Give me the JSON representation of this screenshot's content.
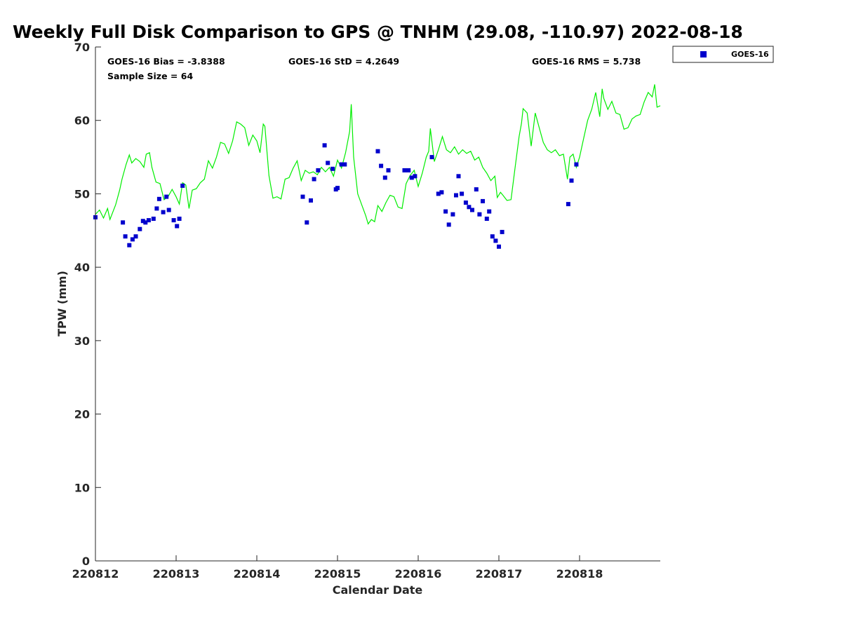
{
  "chart_data": {
    "type": "scatter",
    "title": "Weekly Full Disk Comparison to GPS @ TNHM (29.08, -110.97) 2022-08-18",
    "xlabel": "Calendar Date",
    "ylabel": "TPW (mm)",
    "xlim": [
      0,
      7
    ],
    "ylim": [
      0,
      70
    ],
    "x_ticks": [
      {
        "value": 0,
        "label": "220812"
      },
      {
        "value": 1,
        "label": "220813"
      },
      {
        "value": 2,
        "label": "220814"
      },
      {
        "value": 3,
        "label": "220815"
      },
      {
        "value": 4,
        "label": "220816"
      },
      {
        "value": 5,
        "label": "220817"
      },
      {
        "value": 6,
        "label": "220818"
      }
    ],
    "y_ticks": [
      0,
      10,
      20,
      30,
      40,
      50,
      60,
      70
    ],
    "grid": false,
    "legend": {
      "placement": "outside-top-right",
      "entries": [
        "GOES-16"
      ]
    },
    "stats": {
      "bias": "GOES-16 Bias = -3.8388",
      "std": "GOES-16 StD = 4.2649",
      "rms": "GOES-16 RMS = 5.738",
      "sample": "Sample Size = 64"
    },
    "series": [
      {
        "name": "GOES-16",
        "kind": "scatter",
        "color": "#0000cc",
        "marker": "square",
        "points": [
          [
            0.0,
            46.8
          ],
          [
            0.34,
            46.1
          ],
          [
            0.37,
            44.2
          ],
          [
            0.42,
            43.0
          ],
          [
            0.46,
            43.8
          ],
          [
            0.5,
            44.2
          ],
          [
            0.55,
            45.2
          ],
          [
            0.59,
            46.3
          ],
          [
            0.62,
            46.1
          ],
          [
            0.66,
            46.4
          ],
          [
            0.72,
            46.6
          ],
          [
            0.76,
            48.0
          ],
          [
            0.79,
            49.3
          ],
          [
            0.84,
            47.5
          ],
          [
            0.88,
            49.6
          ],
          [
            0.91,
            47.8
          ],
          [
            0.97,
            46.4
          ],
          [
            1.01,
            45.6
          ],
          [
            1.04,
            46.6
          ],
          [
            1.08,
            51.1
          ],
          [
            2.57,
            49.6
          ],
          [
            2.62,
            46.1
          ],
          [
            2.67,
            49.1
          ],
          [
            2.71,
            52.0
          ],
          [
            2.76,
            53.2
          ],
          [
            2.84,
            56.6
          ],
          [
            2.88,
            54.2
          ],
          [
            2.94,
            53.4
          ],
          [
            2.98,
            50.6
          ],
          [
            3.0,
            50.8
          ],
          [
            3.05,
            54.0
          ],
          [
            3.09,
            54.0
          ],
          [
            3.5,
            55.8
          ],
          [
            3.54,
            53.8
          ],
          [
            3.59,
            52.2
          ],
          [
            3.63,
            53.2
          ],
          [
            3.83,
            53.2
          ],
          [
            3.88,
            53.2
          ],
          [
            3.92,
            52.2
          ],
          [
            3.96,
            52.4
          ],
          [
            4.17,
            55.0
          ],
          [
            4.25,
            50.0
          ],
          [
            4.29,
            50.2
          ],
          [
            4.34,
            47.6
          ],
          [
            4.38,
            45.8
          ],
          [
            4.43,
            47.2
          ],
          [
            4.47,
            49.8
          ],
          [
            4.5,
            52.4
          ],
          [
            4.54,
            50.0
          ],
          [
            4.59,
            48.8
          ],
          [
            4.63,
            48.2
          ],
          [
            4.67,
            47.8
          ],
          [
            4.72,
            50.6
          ],
          [
            4.76,
            47.2
          ],
          [
            4.8,
            49.0
          ],
          [
            4.85,
            46.6
          ],
          [
            4.88,
            47.6
          ],
          [
            4.92,
            44.2
          ],
          [
            4.96,
            43.6
          ],
          [
            5.0,
            42.8
          ],
          [
            5.04,
            44.8
          ],
          [
            5.86,
            48.6
          ],
          [
            5.9,
            51.8
          ],
          [
            5.96,
            54.0
          ]
        ]
      },
      {
        "kind": "line",
        "color": "#00ee00",
        "points": [
          [
            0.0,
            47.2
          ],
          [
            0.05,
            47.8
          ],
          [
            0.1,
            46.7
          ],
          [
            0.15,
            48.0
          ],
          [
            0.18,
            46.5
          ],
          [
            0.25,
            48.5
          ],
          [
            0.3,
            50.5
          ],
          [
            0.33,
            52.0
          ],
          [
            0.38,
            54.0
          ],
          [
            0.42,
            55.3
          ],
          [
            0.45,
            54.2
          ],
          [
            0.5,
            54.8
          ],
          [
            0.55,
            54.4
          ],
          [
            0.6,
            53.6
          ],
          [
            0.63,
            55.4
          ],
          [
            0.67,
            55.6
          ],
          [
            0.7,
            53.6
          ],
          [
            0.75,
            51.6
          ],
          [
            0.8,
            51.4
          ],
          [
            0.85,
            49.2
          ],
          [
            0.9,
            49.6
          ],
          [
            0.95,
            50.6
          ],
          [
            1.0,
            49.6
          ],
          [
            1.04,
            48.6
          ],
          [
            1.08,
            51.5
          ],
          [
            1.12,
            51.2
          ],
          [
            1.16,
            48.0
          ],
          [
            1.2,
            50.5
          ],
          [
            1.25,
            50.7
          ],
          [
            1.3,
            51.5
          ],
          [
            1.35,
            52.0
          ],
          [
            1.4,
            54.5
          ],
          [
            1.45,
            53.5
          ],
          [
            1.5,
            55.0
          ],
          [
            1.55,
            57.0
          ],
          [
            1.6,
            56.8
          ],
          [
            1.65,
            55.5
          ],
          [
            1.7,
            57.2
          ],
          [
            1.75,
            59.8
          ],
          [
            1.8,
            59.5
          ],
          [
            1.85,
            59.0
          ],
          [
            1.9,
            56.6
          ],
          [
            1.95,
            58.0
          ],
          [
            2.0,
            57.2
          ],
          [
            2.04,
            55.6
          ],
          [
            2.08,
            59.5
          ],
          [
            2.1,
            59.2
          ],
          [
            2.15,
            52.5
          ],
          [
            2.2,
            49.4
          ],
          [
            2.25,
            49.6
          ],
          [
            2.3,
            49.3
          ],
          [
            2.35,
            52.0
          ],
          [
            2.4,
            52.2
          ],
          [
            2.45,
            53.5
          ],
          [
            2.5,
            54.5
          ],
          [
            2.55,
            51.8
          ],
          [
            2.6,
            53.2
          ],
          [
            2.65,
            52.8
          ],
          [
            2.7,
            53.0
          ],
          [
            2.75,
            52.6
          ],
          [
            2.8,
            53.6
          ],
          [
            2.85,
            53.0
          ],
          [
            2.9,
            53.6
          ],
          [
            2.95,
            52.4
          ],
          [
            3.0,
            54.6
          ],
          [
            3.05,
            53.5
          ],
          [
            3.1,
            55.6
          ],
          [
            3.15,
            58.5
          ],
          [
            3.17,
            62.2
          ],
          [
            3.2,
            55.0
          ],
          [
            3.25,
            50.0
          ],
          [
            3.3,
            48.5
          ],
          [
            3.35,
            47.0
          ],
          [
            3.38,
            45.9
          ],
          [
            3.42,
            46.5
          ],
          [
            3.46,
            46.2
          ],
          [
            3.5,
            48.4
          ],
          [
            3.55,
            47.6
          ],
          [
            3.6,
            48.8
          ],
          [
            3.65,
            49.8
          ],
          [
            3.7,
            49.6
          ],
          [
            3.75,
            48.2
          ],
          [
            3.8,
            48.0
          ],
          [
            3.85,
            51.4
          ],
          [
            3.9,
            52.5
          ],
          [
            3.95,
            53.2
          ],
          [
            4.0,
            51.0
          ],
          [
            4.05,
            52.8
          ],
          [
            4.1,
            55.0
          ],
          [
            4.13,
            55.8
          ],
          [
            4.15,
            58.9
          ],
          [
            4.2,
            54.4
          ],
          [
            4.25,
            56.0
          ],
          [
            4.3,
            57.8
          ],
          [
            4.35,
            56.0
          ],
          [
            4.4,
            55.6
          ],
          [
            4.45,
            56.4
          ],
          [
            4.5,
            55.4
          ],
          [
            4.55,
            56.0
          ],
          [
            4.6,
            55.5
          ],
          [
            4.65,
            55.8
          ],
          [
            4.7,
            54.6
          ],
          [
            4.75,
            55.0
          ],
          [
            4.8,
            53.6
          ],
          [
            4.85,
            52.8
          ],
          [
            4.9,
            51.8
          ],
          [
            4.95,
            52.4
          ],
          [
            4.98,
            49.5
          ],
          [
            5.02,
            50.2
          ],
          [
            5.05,
            49.8
          ],
          [
            5.1,
            49.1
          ],
          [
            5.15,
            49.2
          ],
          [
            5.2,
            53.5
          ],
          [
            5.25,
            57.8
          ],
          [
            5.28,
            59.6
          ],
          [
            5.3,
            61.6
          ],
          [
            5.35,
            61.0
          ],
          [
            5.4,
            56.5
          ],
          [
            5.45,
            61.0
          ],
          [
            5.5,
            59.0
          ],
          [
            5.55,
            57.0
          ],
          [
            5.6,
            56.0
          ],
          [
            5.65,
            55.6
          ],
          [
            5.7,
            56.0
          ],
          [
            5.75,
            55.2
          ],
          [
            5.8,
            55.4
          ],
          [
            5.85,
            52.0
          ],
          [
            5.88,
            55.0
          ],
          [
            5.92,
            55.4
          ],
          [
            5.96,
            53.6
          ],
          [
            6.0,
            55.0
          ],
          [
            6.05,
            57.5
          ],
          [
            6.1,
            60.0
          ],
          [
            6.15,
            61.5
          ],
          [
            6.2,
            63.8
          ],
          [
            6.25,
            60.5
          ],
          [
            6.28,
            64.3
          ],
          [
            6.3,
            63.0
          ],
          [
            6.35,
            61.5
          ],
          [
            6.4,
            62.6
          ],
          [
            6.45,
            61.0
          ],
          [
            6.5,
            60.8
          ],
          [
            6.55,
            58.8
          ],
          [
            6.6,
            59.0
          ],
          [
            6.65,
            60.2
          ],
          [
            6.7,
            60.6
          ],
          [
            6.75,
            60.8
          ],
          [
            6.8,
            62.5
          ],
          [
            6.85,
            63.8
          ],
          [
            6.9,
            63.2
          ],
          [
            6.93,
            64.9
          ],
          [
            6.96,
            61.8
          ],
          [
            7.0,
            62.0
          ]
        ]
      }
    ]
  }
}
